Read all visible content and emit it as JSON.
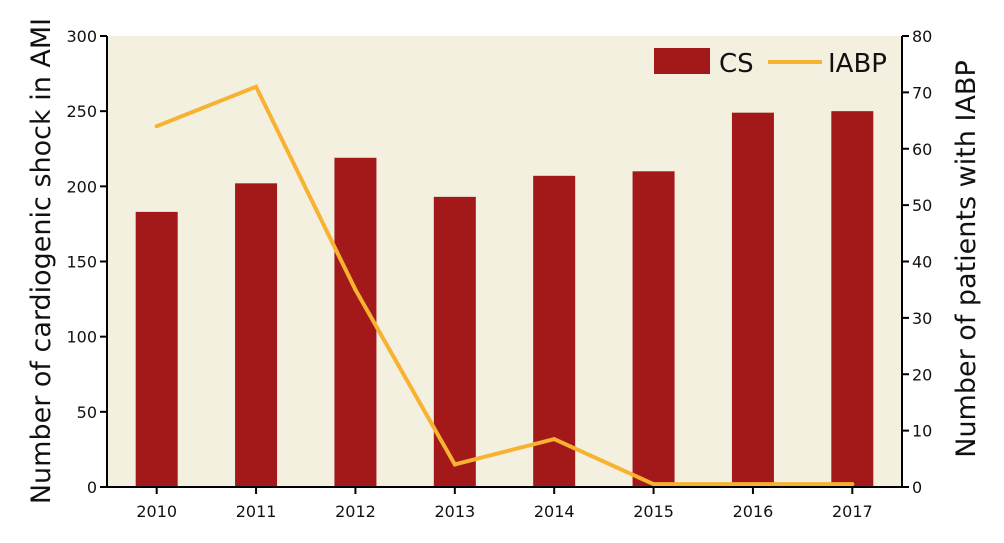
{
  "chart_data": {
    "type": "bar",
    "title": "",
    "xlabel": "",
    "categories": [
      "2010",
      "2011",
      "2012",
      "2013",
      "2014",
      "2015",
      "2016",
      "2017"
    ],
    "series": [
      {
        "name": "CS",
        "type": "bar",
        "axis": "left",
        "color": "#a31919",
        "values": [
          183,
          202,
          219,
          193,
          207,
          210,
          249,
          250
        ]
      },
      {
        "name": "IABP",
        "type": "line",
        "axis": "right",
        "color": "#f7b231",
        "values": [
          64,
          71,
          35,
          4,
          8.5,
          0.5,
          0.5,
          0.5
        ]
      }
    ],
    "y_left": {
      "label": "Number of cardiogenic shock in AMI",
      "range": [
        0,
        300
      ],
      "ticks": [
        0,
        50,
        100,
        150,
        200,
        250,
        300
      ]
    },
    "y_right": {
      "label": "Number of patients with IABP",
      "range": [
        0,
        80
      ],
      "ticks": [
        0,
        10,
        20,
        30,
        40,
        50,
        60,
        70,
        80
      ]
    },
    "grid": false,
    "legend": "top-right",
    "plot_background": "#f4f0e0"
  }
}
